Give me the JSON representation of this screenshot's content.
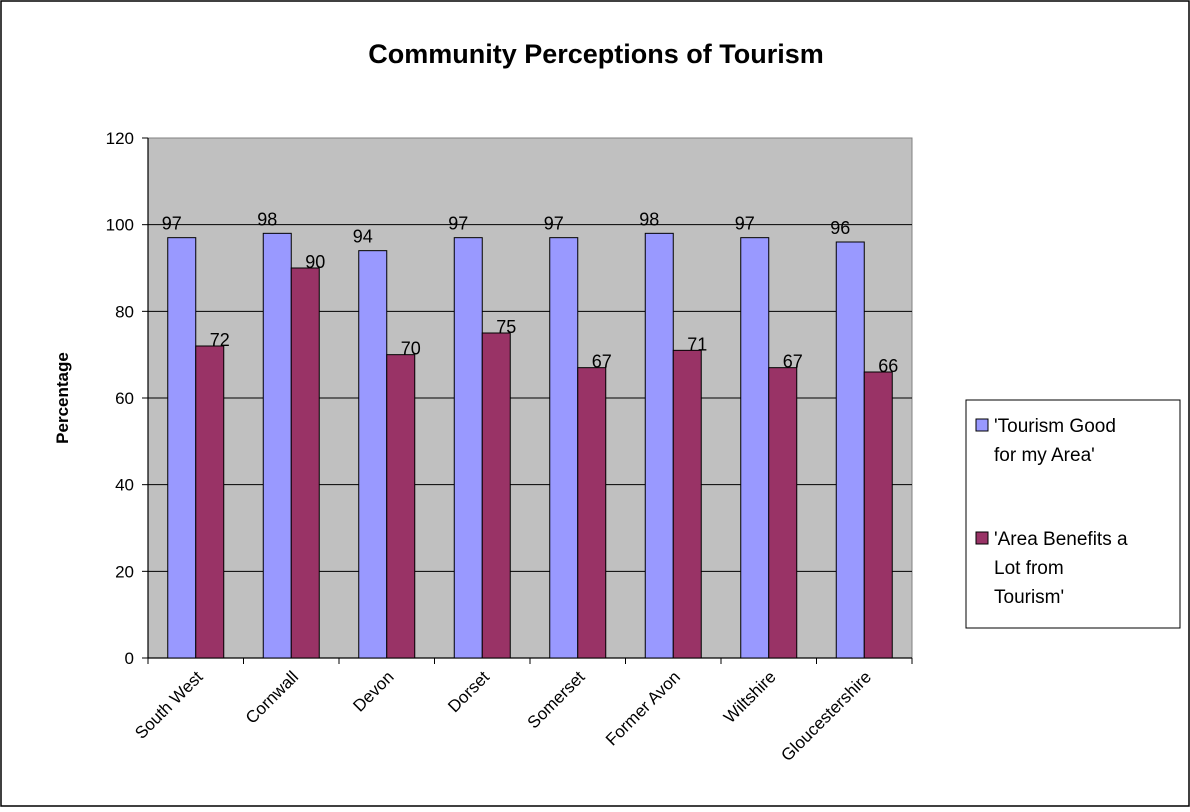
{
  "chart_data": {
    "type": "bar",
    "title": "Community Perceptions of Tourism",
    "xlabel": "",
    "ylabel": "Percentage",
    "ylim": [
      0,
      120
    ],
    "yticks": [
      "0",
      "20",
      "40",
      "60",
      "80",
      "100",
      "120"
    ],
    "grid": true,
    "legend_position": "right",
    "categories": [
      "South West",
      "Cornwall",
      "Devon",
      "Dorset",
      "Somerset",
      "Former Avon",
      "Wiltshire",
      "Gloucestershire"
    ],
    "series": [
      {
        "name": "'Tourism Good for my Area'",
        "name_lines": [
          "'Tourism Good",
          "for my Area'"
        ],
        "color": "#9999FF",
        "values": [
          97,
          98,
          94,
          97,
          97,
          98,
          97,
          96
        ]
      },
      {
        "name": "'Area Benefits a Lot from Tourism'",
        "name_lines": [
          "'Area Benefits a",
          "Lot from",
          "Tourism'"
        ],
        "color": "#993366",
        "values": [
          72,
          90,
          70,
          75,
          67,
          71,
          67,
          66
        ]
      }
    ],
    "plot_background": "#C0C0C0"
  }
}
